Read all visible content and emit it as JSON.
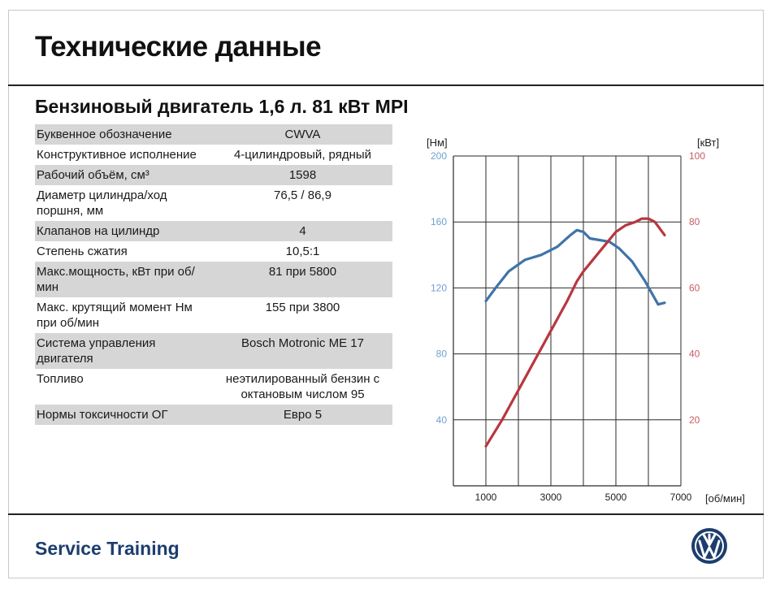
{
  "page": {
    "title": "Технические данные",
    "subtitle": "Бензиновый двигатель 1,6 л. 81 кВт MPI",
    "footer": "Service Training"
  },
  "specs": [
    {
      "label": "Буквенное обозначение",
      "value": "CWVA",
      "shaded": true
    },
    {
      "label": "Конструктивное исполнение",
      "value": "4-цилиндровый, рядный",
      "shaded": false
    },
    {
      "label": "Рабочий объём, см³",
      "value": "1598",
      "shaded": true
    },
    {
      "label": "Диаметр цилиндра/ход поршня, мм",
      "value": "76,5 / 86,9",
      "shaded": false
    },
    {
      "label": "Клапанов на цилиндр",
      "value": "4",
      "shaded": true
    },
    {
      "label": "Степень сжатия",
      "value": "10,5:1",
      "shaded": false
    },
    {
      "label": "Макс.мощность, кВт при об/мин",
      "value": "81 при 5800",
      "shaded": true
    },
    {
      "label": "Макс. крутящий момент Нм при об/мин",
      "value": "155 при 3800",
      "shaded": false
    },
    {
      "label": "Система управления двигателя",
      "value": "Bosch Motronic ME 17",
      "shaded": true
    },
    {
      "label": "Топливо",
      "value": "неэтилированный бензин с октановым числом 95",
      "shaded": false
    },
    {
      "label": "Нормы токсичности ОГ",
      "value": "Евро 5",
      "shaded": true
    }
  ],
  "chart_data": {
    "type": "line",
    "xlabel": "[об/мин]",
    "ylabel_left": "[Нм]",
    "ylabel_right": "[кВт]",
    "xlim": [
      0,
      7000
    ],
    "xtick_values": [
      1000,
      3000,
      5000,
      7000
    ],
    "xtick_labels": [
      "1000",
      "3000",
      "5000",
      "7000"
    ],
    "ylim_left": [
      0,
      200
    ],
    "ytick_left": [
      40,
      80,
      120,
      160,
      200
    ],
    "ylim_right": [
      0,
      100
    ],
    "ytick_right": [
      20,
      40,
      60,
      80,
      100
    ],
    "grid": true,
    "colors": {
      "torque": "#3f74a8",
      "power": "#b8373f",
      "left_axis": "#6f9fcf",
      "right_axis": "#c95b63"
    },
    "series": [
      {
        "axis": "left",
        "color": "#3f74a8",
        "x": [
          1000,
          1300,
          1700,
          2200,
          2700,
          3200,
          3600,
          3800,
          4000,
          4200,
          4500,
          4800,
          5100,
          5500,
          5900,
          6300,
          6500
        ],
        "y": [
          112,
          120,
          130,
          137,
          140,
          145,
          152,
          155,
          154,
          150,
          149,
          148,
          144,
          136,
          124,
          110,
          111
        ]
      },
      {
        "axis": "right",
        "color": "#b8373f",
        "x": [
          1000,
          1500,
          2000,
          2500,
          3000,
          3500,
          3800,
          4000,
          4500,
          5000,
          5300,
          5600,
          5800,
          6000,
          6200,
          6500
        ],
        "y": [
          12,
          20,
          29,
          38,
          47,
          56,
          62,
          65,
          71,
          77,
          79,
          80,
          81,
          81,
          80,
          76
        ]
      }
    ]
  }
}
